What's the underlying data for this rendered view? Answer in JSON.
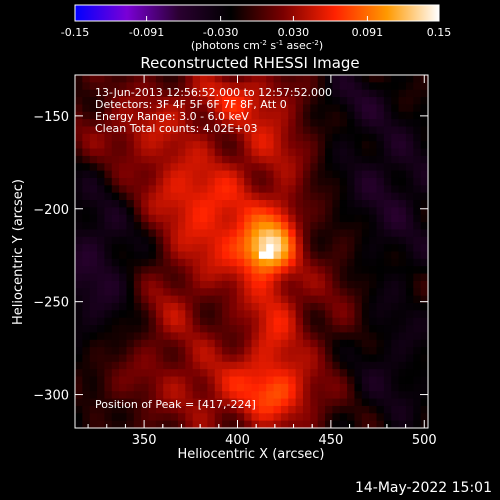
{
  "footer_timestamp": "14-May-2022 15:01",
  "chart_data": {
    "type": "heatmap",
    "title": "Reconstructed RHESSI Image",
    "xlabel": "Heliocentric X (arcsec)",
    "ylabel": "Heliocentric Y (arcsec)",
    "xlim": [
      313,
      502
    ],
    "ylim": [
      -318,
      -128
    ],
    "x_ticks": [
      350,
      400,
      450,
      500
    ],
    "y_ticks": [
      -150,
      -200,
      -250,
      -300
    ],
    "colorbar": {
      "range": [
        -0.15,
        0.15
      ],
      "ticks": [
        "-0.15",
        "-0.091",
        "-0.030",
        "0.030",
        "0.091",
        "0.15"
      ],
      "units_parts": [
        "(photons cm",
        "-2",
        " s",
        "-1",
        " asec",
        "-2",
        ")"
      ],
      "colors": [
        "#0000ff",
        "#7a00d6",
        "#2a0030",
        "#000000",
        "#7a0000",
        "#ff2200",
        "#ff9900",
        "#ffffff"
      ]
    },
    "annotations": [
      "13-Jun-2013 12:56:52.000 to 12:57:52.000",
      "Detectors: 3F 4F 5F 6F 7F 8F, Att 0",
      "Energy Range: 3.0 - 6.0 keV",
      "Clean     Total counts: 4.02E+03"
    ],
    "peak_label": "Position of Peak = [417,-224]",
    "peak": {
      "x": 417,
      "y": -224,
      "value": 0.15
    },
    "components": [
      {
        "x": 415,
        "y": -222,
        "sx": 9,
        "sy": 9,
        "amp": 0.09
      },
      {
        "x": 425,
        "y": -205,
        "sx": 7,
        "sy": 10,
        "amp": 0.04
      },
      {
        "x": 395,
        "y": -215,
        "sx": 22,
        "sy": 18,
        "amp": 0.055
      },
      {
        "x": 370,
        "y": -190,
        "sx": 20,
        "sy": 14,
        "amp": 0.05
      },
      {
        "x": 345,
        "y": -160,
        "sx": 22,
        "sy": 14,
        "amp": 0.045
      },
      {
        "x": 420,
        "y": -165,
        "sx": 18,
        "sy": 16,
        "amp": 0.04
      },
      {
        "x": 400,
        "y": -140,
        "sx": 25,
        "sy": 10,
        "amp": 0.045
      },
      {
        "x": 420,
        "y": -260,
        "sx": 12,
        "sy": 30,
        "amp": 0.05
      },
      {
        "x": 425,
        "y": -300,
        "sx": 18,
        "sy": 12,
        "amp": 0.05
      },
      {
        "x": 360,
        "y": -255,
        "sx": 14,
        "sy": 18,
        "amp": 0.035
      },
      {
        "x": 385,
        "y": -295,
        "sx": 22,
        "sy": 16,
        "amp": 0.035
      },
      {
        "x": 330,
        "y": -295,
        "sx": 14,
        "sy": 14,
        "amp": 0.03
      },
      {
        "x": 455,
        "y": -245,
        "sx": 12,
        "sy": 30,
        "amp": 0.025
      }
    ],
    "background": [
      {
        "x": 325,
        "y": -230,
        "sx": 22,
        "sy": 45,
        "amp": -0.05
      },
      {
        "x": 480,
        "y": -190,
        "sx": 28,
        "sy": 40,
        "amp": -0.045
      },
      {
        "x": 480,
        "y": -290,
        "sx": 25,
        "sy": 30,
        "amp": -0.035
      },
      {
        "x": 455,
        "y": -140,
        "sx": 18,
        "sy": 12,
        "amp": -0.03
      },
      {
        "x": 320,
        "y": -310,
        "sx": 12,
        "sy": 10,
        "amp": -0.03
      }
    ]
  }
}
